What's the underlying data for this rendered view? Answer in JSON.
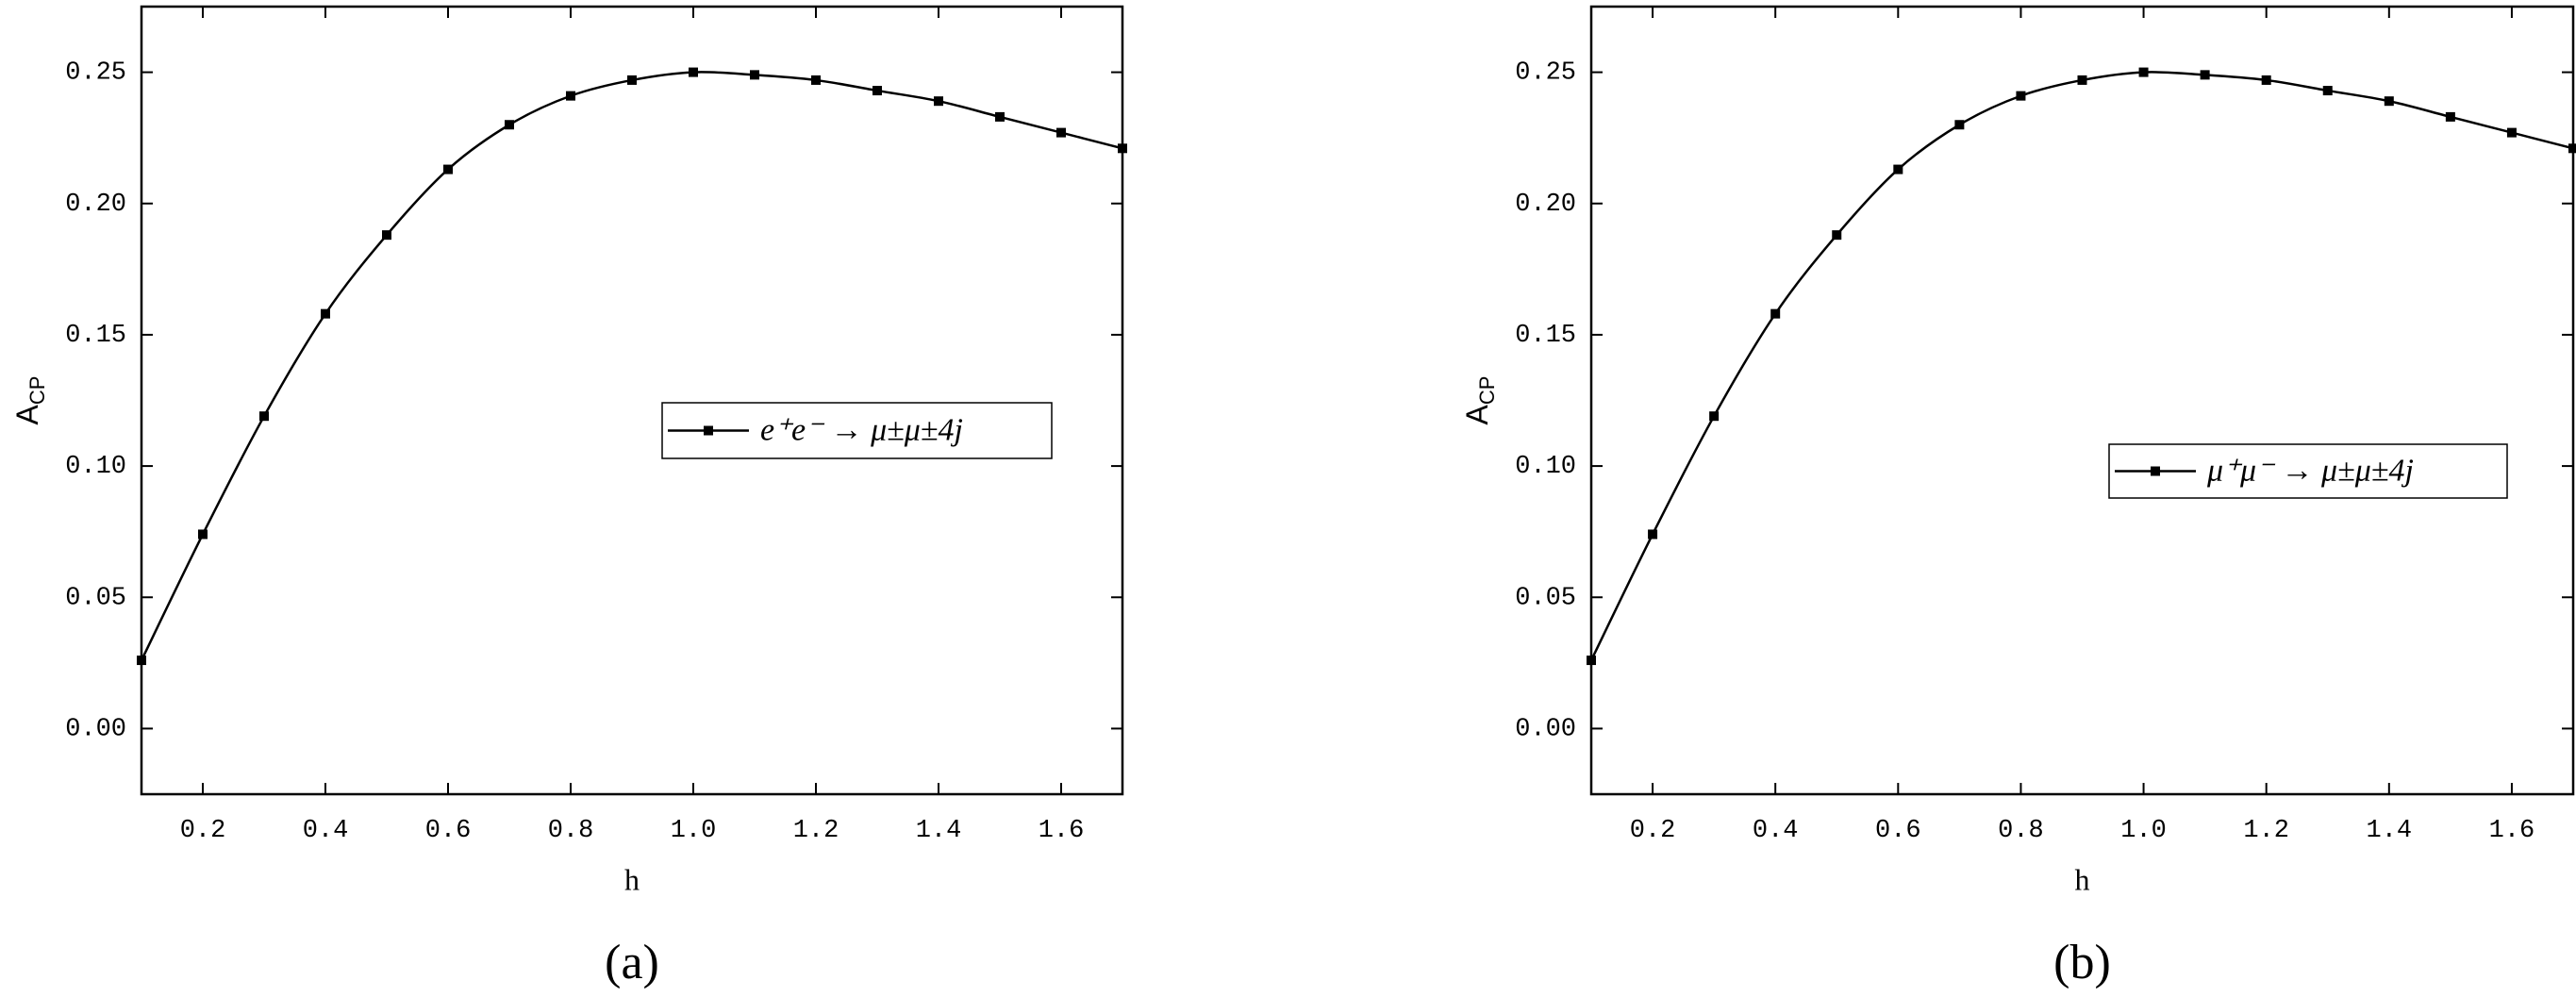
{
  "chart_data": [
    {
      "type": "line",
      "caption": "(a)",
      "x_label": "h",
      "y_label": "A",
      "y_label_subscript": "CP",
      "x": [
        0.1,
        0.2,
        0.3,
        0.4,
        0.5,
        0.6,
        0.7,
        0.8,
        0.9,
        1.0,
        1.1,
        1.2,
        1.3,
        1.4,
        1.5,
        1.6,
        1.7
      ],
      "series": [
        {
          "name": "e⁺e⁻ → μ±μ±4j",
          "color": "#000000",
          "values": [
            0.026,
            0.074,
            0.119,
            0.158,
            0.188,
            0.213,
            0.23,
            0.241,
            0.247,
            0.25,
            0.249,
            0.247,
            0.243,
            0.239,
            0.233,
            0.227,
            0.221
          ]
        }
      ],
      "xlim": [
        0.1,
        1.7
      ],
      "xticks": [
        0.2,
        0.4,
        0.6,
        0.8,
        {
          "value": 1.0,
          "label": "1.0"
        },
        1.2,
        1.4,
        1.6
      ],
      "ylim": [
        -0.025,
        0.275
      ],
      "yticks": [
        {
          "value": 0,
          "label": "0.00"
        },
        0.05,
        {
          "value": 0.1,
          "label": "0.10"
        },
        0.15,
        {
          "value": 0.2,
          "label": "0.20"
        },
        0.25
      ],
      "legend": "right"
    },
    {
      "type": "line",
      "caption": "(b)",
      "x_label": "h",
      "y_label": "A",
      "y_label_subscript": "CP",
      "x": [
        0.1,
        0.2,
        0.3,
        0.4,
        0.5,
        0.6,
        0.7,
        0.8,
        0.9,
        1.0,
        1.1,
        1.2,
        1.3,
        1.4,
        1.5,
        1.6,
        1.7
      ],
      "series": [
        {
          "name": "μ⁺μ⁻ → μ±μ±4j",
          "color": "#000000",
          "values": [
            0.026,
            0.074,
            0.119,
            0.158,
            0.188,
            0.213,
            0.23,
            0.241,
            0.247,
            0.25,
            0.249,
            0.247,
            0.243,
            0.239,
            0.233,
            0.227,
            0.221
          ]
        }
      ],
      "xlim": [
        0.1,
        1.7
      ],
      "xticks": [
        0.2,
        0.4,
        0.6,
        0.8,
        {
          "value": 1.0,
          "label": "1.0"
        },
        1.2,
        1.4,
        1.6
      ],
      "ylim": [
        -0.025,
        0.275
      ],
      "yticks": [
        {
          "value": 0,
          "label": "0.00"
        },
        0.05,
        {
          "value": 0.1,
          "label": "0.10"
        },
        0.15,
        {
          "value": 0.2,
          "label": "0.20"
        },
        0.25
      ],
      "legend": "right"
    }
  ]
}
